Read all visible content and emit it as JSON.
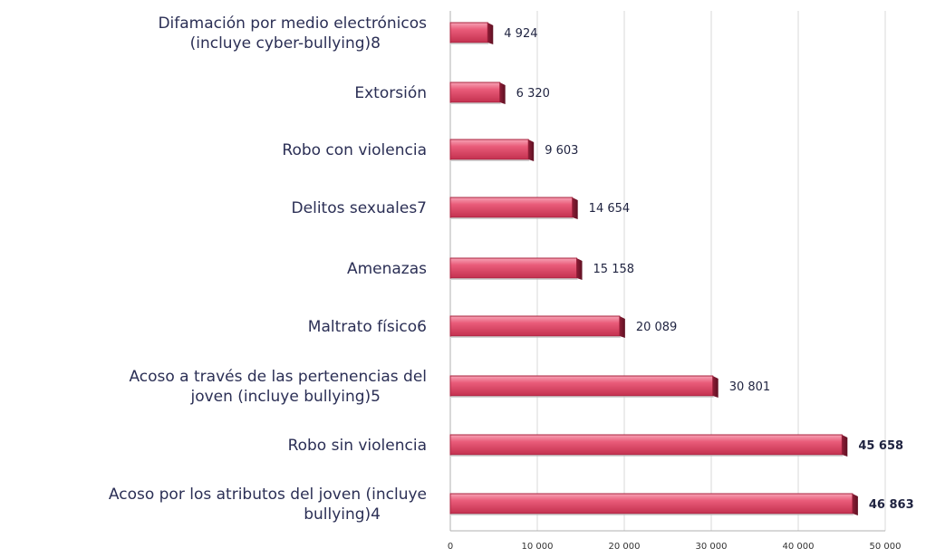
{
  "chart_data": {
    "type": "bar",
    "orientation": "horizontal",
    "categories": [
      [
        "Difamación por medio electrónicos",
        "(incluye cyber-bullying)8"
      ],
      [
        "Extorsión"
      ],
      [
        "Robo con violencia"
      ],
      [
        "Delitos sexuales7"
      ],
      [
        "Amenazas"
      ],
      [
        "Maltrato físico6"
      ],
      [
        "Acoso a través de las pertenencias del",
        "joven (incluye bullying)5"
      ],
      [
        "Robo sin violencia"
      ],
      [
        "Acoso por los atributos del joven (incluye",
        "bullying)4"
      ]
    ],
    "values": [
      4924,
      6320,
      9603,
      14654,
      15158,
      20089,
      30801,
      45658,
      46863
    ],
    "value_labels": [
      "4 924",
      "6 320",
      "9 603",
      "14 654",
      "15 158",
      "20 089",
      "30 801",
      "45 658",
      "46 863"
    ],
    "bold_value_labels": [
      false,
      false,
      false,
      false,
      false,
      false,
      false,
      true,
      true
    ],
    "x_ticks": [
      0,
      10000,
      20000,
      30000,
      40000,
      50000
    ],
    "x_tick_labels": [
      "0",
      "10 000",
      "20 000",
      "30 000",
      "40 000",
      "50 000"
    ],
    "xlim": [
      0,
      50000
    ],
    "grid": true,
    "bar_color": "#e0506e",
    "bar_border_color": "#a8223e"
  }
}
